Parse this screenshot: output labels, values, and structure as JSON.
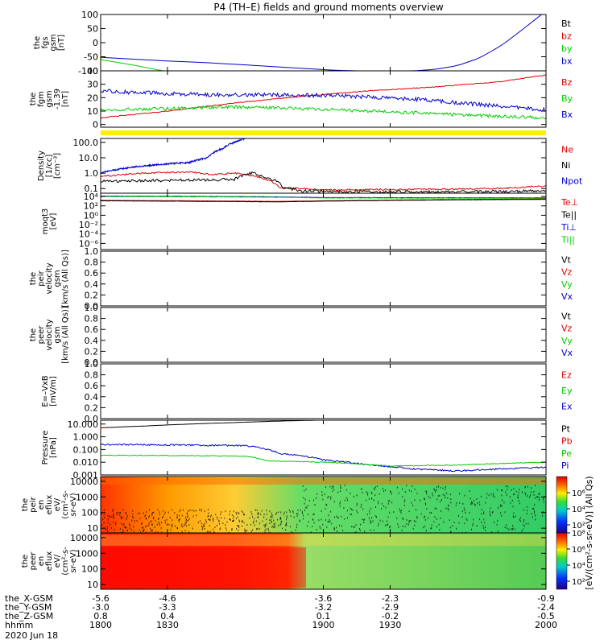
{
  "title": "P4 (TH–E) fields and ground moments overview",
  "date_label": "2020 Jun 18",
  "colors": {
    "black": "#000000",
    "red": "#dd0000",
    "green": "#00cc00",
    "blue": "#0000cc",
    "yellow": "#ffee00",
    "axis": "#000000"
  },
  "chart_data": [
    {
      "id": "fgs",
      "type": "line",
      "ylabel": [
        "the",
        "fgs",
        "gsm",
        "[nT]"
      ],
      "ylim": [
        -100,
        100
      ],
      "yticks": [
        "100",
        "50",
        "0",
        "-50",
        "-100"
      ],
      "yticks_values": [
        100,
        50,
        0,
        -50,
        -100
      ],
      "legend": [
        {
          "label": "Bt",
          "color": "#000000"
        },
        {
          "label": "bz",
          "color": "#dd0000"
        },
        {
          "label": "by",
          "color": "#00cc00"
        },
        {
          "label": "bx",
          "color": "#0000cc"
        }
      ],
      "series": [
        {
          "name": "bx",
          "color": "#0000cc",
          "x": [
            1800,
            1830,
            1850,
            1905,
            1915,
            1940,
            1950,
            1960,
            1970,
            1980,
            1990,
            1998
          ],
          "y": [
            -52,
            -65,
            -72,
            -98,
            -100,
            -100,
            -95,
            -82,
            -55,
            -10,
            50,
            100
          ]
        },
        {
          "name": "by",
          "color": "#00cc00",
          "x": [
            1800,
            1815,
            1828
          ],
          "y": [
            -60,
            -80,
            -100
          ]
        },
        {
          "name": "bz",
          "color": "#dd0000",
          "x": [
            1800,
            1803
          ],
          "y": [
            100,
            100
          ]
        }
      ]
    },
    {
      "id": "fgm",
      "type": "line",
      "ylabel": [
        "the",
        "fgm",
        "gsm",
        "-1.39",
        "[nT]"
      ],
      "ylim": [
        -2,
        40
      ],
      "yticks": [
        "40",
        "30",
        "20",
        "10",
        "0"
      ],
      "yticks_values": [
        40,
        30,
        20,
        10,
        0
      ],
      "legend": [
        {
          "label": "Bz",
          "color": "#dd0000"
        },
        {
          "label": "By",
          "color": "#00cc00"
        },
        {
          "label": "Bx",
          "color": "#0000cc"
        }
      ],
      "series": [
        {
          "name": "Bz",
          "color": "#dd0000",
          "noise": 0.3,
          "x": [
            1800,
            1830,
            1860,
            1890,
            1920,
            1950,
            1980,
            2000
          ],
          "y": [
            5,
            10,
            16,
            21,
            25,
            28,
            32,
            37
          ]
        },
        {
          "name": "By",
          "color": "#00cc00",
          "noise": 1.2,
          "x": [
            1800,
            1830,
            1860,
            1890,
            1920,
            1950,
            1980,
            2000
          ],
          "y": [
            11,
            12,
            13,
            12,
            10,
            8,
            6,
            5
          ]
        },
        {
          "name": "Bx",
          "color": "#0000cc",
          "noise": 1.5,
          "x": [
            1800,
            1830,
            1860,
            1890,
            1915,
            1940,
            1970,
            2000
          ],
          "y": [
            25,
            23,
            22,
            22,
            21,
            19,
            15,
            11
          ]
        }
      ]
    },
    {
      "id": "density",
      "type": "line",
      "scale": "log",
      "ylabel": [
        "Density",
        "[1/cc]",
        "[cm⁻³]"
      ],
      "ylim": [
        0.05,
        180
      ],
      "yticks": [
        "100.0",
        "10.0",
        "1.0",
        "0.1"
      ],
      "yticks_values": [
        100,
        10,
        1,
        0.1
      ],
      "legend": [
        {
          "label": "Ne",
          "color": "#dd0000"
        },
        {
          "label": "Ni",
          "color": "#000000"
        },
        {
          "label": "Npot",
          "color": "#0000cc"
        }
      ],
      "series": [
        {
          "name": "Npot",
          "color": "#0000cc",
          "noise": 0.05,
          "x": [
            1800,
            1810,
            1820,
            1830,
            1840,
            1848,
            1855,
            1860,
            1865
          ],
          "y": [
            1.0,
            2.0,
            3.0,
            4.0,
            5.0,
            10.0,
            40.0,
            100.0,
            180.0
          ]
        },
        {
          "name": "Ne",
          "color": "#dd0000",
          "noise": 0.05,
          "x": [
            1800,
            1820,
            1840,
            1850,
            1860,
            1870,
            1880,
            1900,
            1940,
            1980,
            2000
          ],
          "y": [
            0.6,
            1.0,
            1.2,
            0.8,
            1.0,
            0.6,
            0.12,
            0.08,
            0.09,
            0.1,
            0.15
          ]
        },
        {
          "name": "Ni",
          "color": "#000000",
          "noise": 0.09,
          "x": [
            1800,
            1840,
            1860,
            1868,
            1875,
            1882,
            1890,
            1920,
            1960,
            2000
          ],
          "y": [
            0.3,
            0.35,
            0.4,
            1.0,
            0.5,
            0.12,
            0.07,
            0.06,
            0.06,
            0.07
          ]
        }
      ]
    },
    {
      "id": "temp",
      "type": "line",
      "scale": "log",
      "ylabel": [
        "moqt3",
        "[eV]"
      ],
      "ylim": [
        5e-08,
        50000
      ],
      "yticks": [
        "10⁴",
        "10²",
        "10⁰",
        "10⁻²",
        "10⁻⁴",
        "10⁻⁶"
      ],
      "yticks_values": [
        10000,
        100,
        1,
        0.01,
        0.0001,
        1e-06
      ],
      "legend": [
        {
          "label": "Te⊥",
          "color": "#dd0000"
        },
        {
          "label": "Te||",
          "color": "#000000"
        },
        {
          "label": "Ti⊥",
          "color": "#0000cc"
        },
        {
          "label": "Ti||",
          "color": "#00cc00"
        }
      ],
      "series": [
        {
          "name": "Ti⊥",
          "color": "#0000cc",
          "noise": 0.03,
          "x": [
            1800,
            1870,
            1900,
            2000
          ],
          "y": [
            12000,
            9000,
            6000,
            5000
          ]
        },
        {
          "name": "Ti||",
          "color": "#00cc00",
          "noise": 0.03,
          "x": [
            1800,
            1870,
            1900,
            2000
          ],
          "y": [
            10000,
            7500,
            5000,
            4000
          ]
        },
        {
          "name": "Te⊥",
          "color": "#dd0000",
          "noise": 0.02,
          "x": [
            1800,
            1880,
            1900,
            2000
          ],
          "y": [
            1500,
            900,
            1200,
            3000
          ]
        },
        {
          "name": "Te||",
          "color": "#000000",
          "noise": 0.02,
          "x": [
            1800,
            1880,
            1900,
            2000
          ],
          "y": [
            1200,
            700,
            1000,
            2500
          ]
        }
      ]
    },
    {
      "id": "peir_vel",
      "type": "line",
      "ylabel": [
        "the",
        "peir",
        "velocity",
        "gsm",
        "[km/s (All Qs)]"
      ],
      "ylim": [
        0,
        1
      ],
      "yticks": [
        "1.0",
        "0.8",
        "0.6",
        "0.4",
        "0.2",
        "0.0"
      ],
      "yticks_values": [
        1.0,
        0.8,
        0.6,
        0.4,
        0.2,
        0.0
      ],
      "legend": [
        {
          "label": "Vt",
          "color": "#000000"
        },
        {
          "label": "Vz",
          "color": "#dd0000"
        },
        {
          "label": "Vy",
          "color": "#00cc00"
        },
        {
          "label": "Vx",
          "color": "#0000cc"
        }
      ],
      "series": []
    },
    {
      "id": "peer_vel",
      "type": "line",
      "ylabel": [
        "the",
        "peer",
        "velocity",
        "gsm",
        "[km/s (All Qs)]"
      ],
      "ylim": [
        0,
        1
      ],
      "yticks": [
        "1.0",
        "0.8",
        "0.6",
        "0.4",
        "0.2",
        "0.0"
      ],
      "yticks_values": [
        1.0,
        0.8,
        0.6,
        0.4,
        0.2,
        0.0
      ],
      "legend": [
        {
          "label": "Vt",
          "color": "#000000"
        },
        {
          "label": "Vz",
          "color": "#dd0000"
        },
        {
          "label": "Vy",
          "color": "#00cc00"
        },
        {
          "label": "Vx",
          "color": "#0000cc"
        }
      ],
      "series": []
    },
    {
      "id": "efield",
      "type": "line",
      "ylabel": [
        "E=–VxB",
        "[mV/m]"
      ],
      "ylim": [
        0,
        1
      ],
      "yticks": [
        "1.0",
        "0.8",
        "0.6",
        "0.4",
        "0.2",
        "0.0"
      ],
      "yticks_values": [
        1.0,
        0.8,
        0.6,
        0.4,
        0.2,
        0.0
      ],
      "legend": [
        {
          "label": "Ez",
          "color": "#dd0000"
        },
        {
          "label": "Ey",
          "color": "#00cc00"
        },
        {
          "label": "Ex",
          "color": "#0000cc"
        }
      ],
      "series": []
    },
    {
      "id": "pressure",
      "type": "line",
      "scale": "log",
      "ylabel": [
        "Pressure",
        "[nPa]"
      ],
      "ylim": [
        0.001,
        20
      ],
      "yticks": [
        "10.000",
        "1.000",
        "0.100",
        "0.010",
        "0.001"
      ],
      "yticks_values": [
        10,
        1,
        0.1,
        0.01,
        0.001
      ],
      "legend": [
        {
          "label": "Pt",
          "color": "#000000"
        },
        {
          "label": "Pb",
          "color": "#dd0000"
        },
        {
          "label": "Pe",
          "color": "#00cc00"
        },
        {
          "label": "Pi",
          "color": "#0000cc"
        }
      ],
      "series": [
        {
          "name": "Pt",
          "color": "#000000",
          "x": [
            1800,
            1820,
            1840,
            1860,
            1880,
            1897
          ],
          "y": [
            5.0,
            7.0,
            10.0,
            13.0,
            17.0,
            20.0
          ]
        },
        {
          "name": "Pi",
          "color": "#0000cc",
          "noise": 0.06,
          "x": [
            1800,
            1830,
            1865,
            1880,
            1900,
            1920,
            1940,
            1960,
            1980,
            2000
          ],
          "y": [
            0.25,
            0.23,
            0.2,
            0.05,
            0.015,
            0.006,
            0.003,
            0.002,
            0.003,
            0.004
          ]
        },
        {
          "name": "Pe",
          "color": "#00cc00",
          "noise": 0.03,
          "x": [
            1800,
            1830,
            1865,
            1875,
            1900,
            1930,
            1960,
            2000
          ],
          "y": [
            0.035,
            0.034,
            0.03,
            0.013,
            0.01,
            0.005,
            0.006,
            0.01
          ]
        },
        {
          "name": "Pb",
          "color": "#dd0000",
          "x": [
            1800,
            1802
          ],
          "y": [
            5.0,
            5.2
          ]
        }
      ]
    },
    {
      "id": "peir_eflux",
      "type": "heatmap",
      "ylabel": [
        "the",
        "peir",
        "en",
        "eflux",
        "eV/",
        "(cm²-s-",
        "sr-eV)"
      ],
      "ylim": [
        5,
        20000
      ],
      "yticks": [
        "10000",
        "1000",
        "100",
        "10"
      ],
      "yticks_values": [
        10000,
        1000,
        100,
        10
      ],
      "colorbar_ticks": [
        "10⁶",
        "10⁴",
        "10²"
      ],
      "colorbar_values": [
        1000000,
        10000,
        100
      ],
      "colorbar_range": [
        10,
        100000000
      ]
    },
    {
      "id": "peer_eflux",
      "type": "heatmap",
      "ylabel": [
        "the",
        "peer",
        "en",
        "eflux",
        "eV/",
        "(cm²-s-",
        "sr-eV)"
      ],
      "ylim": [
        5,
        20000
      ],
      "yticks": [
        "10000",
        "1000",
        "100",
        "10"
      ],
      "yticks_values": [
        10000,
        1000,
        100,
        10
      ],
      "colorbar_ticks": [
        "10⁸",
        "10⁶",
        "10⁴",
        "10²"
      ],
      "colorbar_values": [
        100000000,
        1000000,
        10000,
        100
      ],
      "colorbar_range": [
        10,
        100000000
      ]
    }
  ],
  "colorbar_label": "[eV/(cm²-s-sr-eV)] (All Qs)",
  "xaxis": {
    "range": [
      1800,
      2000
    ],
    "ticks_values": [
      1800,
      1830,
      1900,
      1930,
      2000
    ],
    "rows": [
      {
        "label": "the_X-GSM",
        "values": [
          "-5.6",
          "-4.6",
          "-3.6",
          "-2.3",
          "-0.9"
        ]
      },
      {
        "label": "the_Y-GSM",
        "values": [
          "-3.0",
          "-3.3",
          "-3.2",
          "-2.9",
          "-2.4"
        ]
      },
      {
        "label": "the_Z-GSM",
        "values": [
          "0.8",
          "0.4",
          "0.1",
          "-0.2",
          "-0.5"
        ]
      },
      {
        "label": "hhmm",
        "values": [
          "1800",
          "1830",
          "1900",
          "1930",
          "2000"
        ]
      }
    ]
  }
}
